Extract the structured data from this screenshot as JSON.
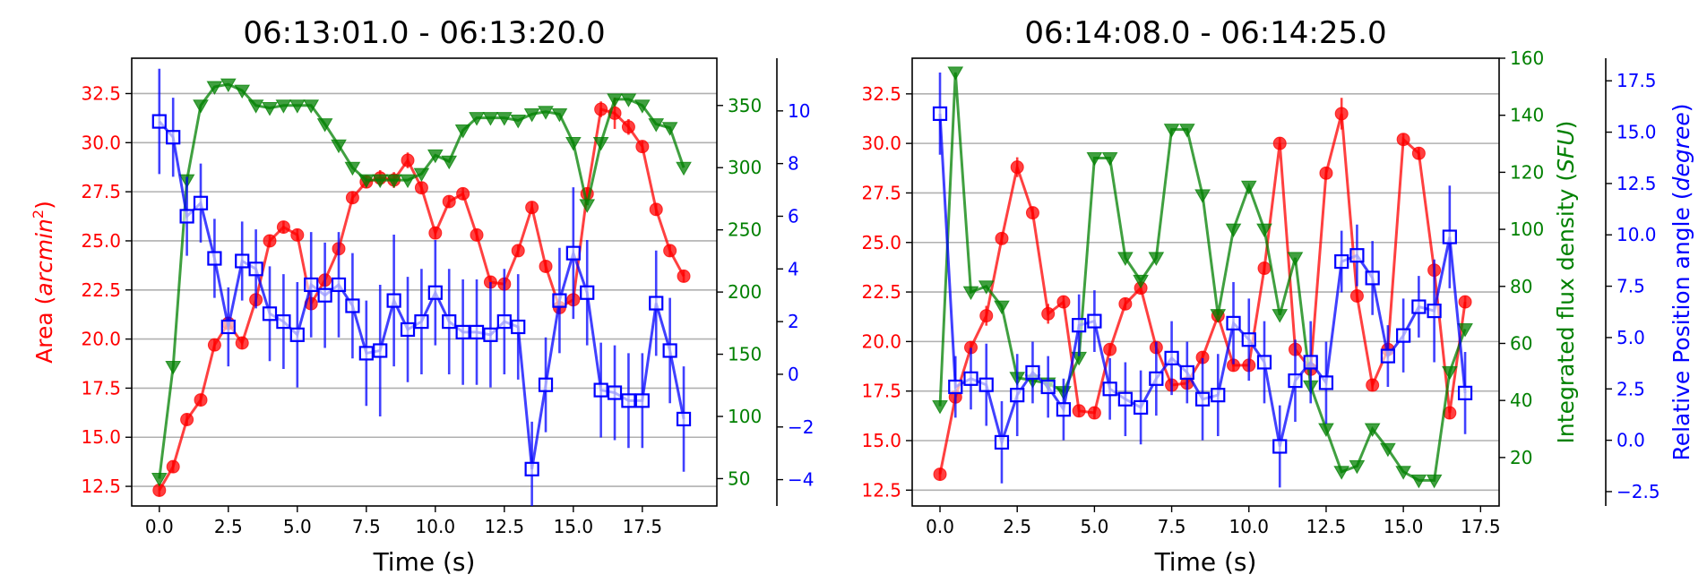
{
  "colors": {
    "area": "#ff0000",
    "flux": "#008000",
    "angle": "#0000ff",
    "grid": "#b0b0b0"
  },
  "chart_data": [
    {
      "type": "line",
      "title": "06:13:01.0 - 06:13:20.0",
      "xlabel": "Time (s)",
      "x_ticks": [
        "0.0",
        "2.5",
        "5.0",
        "7.5",
        "10.0",
        "12.5",
        "15.0",
        "17.5"
      ],
      "xlim": [
        -1.0,
        20.2
      ],
      "axes": {
        "left": {
          "ylim": [
            11.5,
            34.3
          ],
          "ticks": [
            "12.5",
            "15.0",
            "17.5",
            "20.0",
            "22.5",
            "25.0",
            "27.5",
            "30.0",
            "32.5"
          ],
          "label_text": "Area (",
          "label_var": "arcmin",
          "label_sup": "2",
          "label_end": ")"
        },
        "right1": {
          "ylim": [
            28,
            388
          ],
          "ticks": [
            "50",
            "100",
            "150",
            "200",
            "250",
            "300",
            "350"
          ]
        },
        "right2": {
          "ylim": [
            -5,
            12
          ],
          "ticks": [
            "−4",
            "−2",
            "0",
            "2",
            "4",
            "6",
            "8",
            "10"
          ]
        }
      },
      "grid": "horizontal",
      "series": [
        {
          "axis": "left",
          "marker": "circle",
          "x": [
            0,
            0.5,
            1,
            1.5,
            2,
            2.5,
            3,
            3.5,
            4,
            4.5,
            5,
            5.5,
            6,
            6.5,
            7,
            7.5,
            8,
            8.5,
            9,
            9.5,
            10,
            10.5,
            11,
            11.5,
            12,
            12.5,
            13,
            13.5,
            14,
            14.5,
            15,
            15.5,
            16,
            16.5,
            17,
            17.5,
            18,
            18.5,
            19
          ],
          "y": [
            12.3,
            13.5,
            15.9,
            16.9,
            19.7,
            20.8,
            19.8,
            22.0,
            25.0,
            25.7,
            25.3,
            21.8,
            23.0,
            24.6,
            27.2,
            28.0,
            28.2,
            28.1,
            29.1,
            27.7,
            25.4,
            27.0,
            27.4,
            25.3,
            22.9,
            22.8,
            24.5,
            26.7,
            23.7,
            21.6,
            22.0,
            27.4,
            31.7,
            31.5,
            30.8,
            29.8,
            26.6,
            24.5,
            23.2
          ],
          "err": [
            0.3,
            0.3,
            0.3,
            0.3,
            0.3,
            0.3,
            0.3,
            0.3,
            0.3,
            0.3,
            0.3,
            0.3,
            0.3,
            0.3,
            0.3,
            0.3,
            0.4,
            0.4,
            0.4,
            0.3,
            0.3,
            0.3,
            0.3,
            0.3,
            0.3,
            0.3,
            0.3,
            0.3,
            0.3,
            0.3,
            0.3,
            0.3,
            0.4,
            0.8,
            0.4,
            0.3,
            0.3,
            0.3,
            0.3
          ]
        },
        {
          "axis": "right1",
          "marker": "triangle",
          "x": [
            0,
            0.5,
            1,
            1.5,
            2,
            2.5,
            3,
            3.5,
            4,
            4.5,
            5,
            5.5,
            6,
            6.5,
            7,
            7.5,
            8,
            8.5,
            9,
            9.5,
            10,
            10.5,
            11,
            11.5,
            12,
            12.5,
            13,
            13.5,
            14,
            14.5,
            15,
            15.5,
            16,
            16.5,
            17,
            17.5,
            18,
            18.5,
            19
          ],
          "y": [
            50,
            140,
            290,
            350,
            365,
            367,
            362,
            350,
            348,
            350,
            350,
            350,
            335,
            318,
            300,
            290,
            290,
            290,
            290,
            295,
            310,
            305,
            330,
            340,
            340,
            340,
            338,
            343,
            345,
            343,
            320,
            270,
            320,
            355,
            355,
            350,
            335,
            332,
            300
          ]
        },
        {
          "axis": "right2",
          "marker": "square",
          "x": [
            0,
            0.5,
            1,
            1.5,
            2,
            2.5,
            3,
            3.5,
            4,
            4.5,
            5,
            5.5,
            6,
            6.5,
            7,
            7.5,
            8,
            8.5,
            9,
            9.5,
            10,
            10.5,
            11,
            11.5,
            12,
            12.5,
            13,
            13.5,
            14,
            14.5,
            15,
            15.5,
            16,
            16.5,
            17,
            17.5,
            18,
            18.5,
            19
          ],
          "y": [
            9.6,
            9.0,
            6.0,
            6.5,
            4.4,
            1.8,
            4.3,
            4.0,
            2.3,
            2.0,
            1.5,
            3.4,
            3.0,
            3.4,
            2.6,
            0.8,
            0.9,
            2.8,
            1.7,
            2.0,
            3.1,
            2.0,
            1.6,
            1.6,
            1.5,
            2.0,
            1.8,
            -3.6,
            -0.4,
            2.8,
            4.6,
            3.1,
            -0.6,
            -0.7,
            -1.0,
            -1.0,
            2.7,
            0.9,
            -1.7
          ],
          "err": [
            2.0,
            1.5,
            1.5,
            1.5,
            1.5,
            1.5,
            1.5,
            1.5,
            1.8,
            1.8,
            2.0,
            2.0,
            2.0,
            2.0,
            2.0,
            2.0,
            2.5,
            2.5,
            2.0,
            2.0,
            2.0,
            2.0,
            2.0,
            2.0,
            2.0,
            2.0,
            2.0,
            1.8,
            1.8,
            2.0,
            2.5,
            2.0,
            1.8,
            1.8,
            1.8,
            1.8,
            2.0,
            2.0,
            2.0
          ]
        }
      ]
    },
    {
      "type": "line",
      "title": "06:14:08.0 - 06:14:25.0",
      "xlabel": "Time (s)",
      "x_ticks": [
        "0.0",
        "2.5",
        "5.0",
        "7.5",
        "10.0",
        "12.5",
        "15.0",
        "17.5"
      ],
      "xlim": [
        -0.9,
        18.1
      ],
      "axes": {
        "left": {
          "ylim": [
            11.7,
            34.3
          ],
          "ticks": [
            "12.5",
            "15.0",
            "17.5",
            "20.0",
            "22.5",
            "25.0",
            "27.5",
            "30.0",
            "32.5"
          ]
        },
        "right1": {
          "ylim": [
            3,
            160
          ],
          "ticks": [
            "20",
            "40",
            "60",
            "80",
            "100",
            "120",
            "140",
            "160"
          ],
          "label_text": "Integrated flux density (",
          "label_var": "SFU",
          "label_end": ")"
        },
        "right2": {
          "ylim": [
            -3.2,
            18.6
          ],
          "ticks": [
            "−2.5",
            "0.0",
            "2.5",
            "5.0",
            "7.5",
            "10.0",
            "12.5",
            "15.0",
            "17.5"
          ],
          "label_text": "Relative Position angle (",
          "label_var": "degree",
          "label_end": ")"
        }
      },
      "grid": "horizontal",
      "series": [
        {
          "axis": "left",
          "marker": "circle",
          "x": [
            0,
            0.5,
            1,
            1.5,
            2,
            2.5,
            3,
            3.5,
            4,
            4.5,
            5,
            5.5,
            6,
            6.5,
            7,
            7.5,
            8,
            8.5,
            9,
            9.5,
            10,
            10.5,
            11,
            11.5,
            12,
            12.5,
            13,
            13.5,
            14,
            14.5,
            15,
            15.5,
            16,
            16.5,
            17
          ],
          "y": [
            13.3,
            17.2,
            19.7,
            21.3,
            25.2,
            28.8,
            26.5,
            21.4,
            22.0,
            16.5,
            16.4,
            19.6,
            21.9,
            22.7,
            19.7,
            17.8,
            17.9,
            19.2,
            21.3,
            18.8,
            18.8,
            23.7,
            30.0,
            19.6,
            18.6,
            28.5,
            31.5,
            22.3,
            17.8,
            19.6,
            30.2,
            29.5,
            23.6,
            16.4,
            22.0
          ],
          "err": [
            0.3,
            0.3,
            0.3,
            0.5,
            0.3,
            0.5,
            0.3,
            0.5,
            0.3,
            0.3,
            0.3,
            0.3,
            0.3,
            0.3,
            0.3,
            0.3,
            0.3,
            0.3,
            0.3,
            0.3,
            0.3,
            0.3,
            0.3,
            0.3,
            0.3,
            0.3,
            0.8,
            0.3,
            0.3,
            0.3,
            0.3,
            0.3,
            0.3,
            0.3,
            0.3
          ]
        },
        {
          "axis": "right1",
          "marker": "triangle",
          "x": [
            0,
            0.5,
            1,
            1.5,
            2,
            2.5,
            3,
            3.5,
            4,
            4.5,
            5,
            5.5,
            6,
            6.5,
            7,
            7.5,
            8,
            8.5,
            9,
            9.5,
            10,
            10.5,
            11,
            11.5,
            12,
            12.5,
            13,
            13.5,
            14,
            14.5,
            15,
            15.5,
            16,
            16.5,
            17
          ],
          "y": [
            38,
            155,
            78,
            80,
            73,
            48,
            47,
            46,
            43,
            55,
            125,
            125,
            90,
            82,
            90,
            135,
            135,
            112,
            70,
            100,
            115,
            100,
            70,
            90,
            45,
            30,
            15,
            17,
            30,
            23,
            15,
            12,
            12,
            50,
            65
          ]
        },
        {
          "axis": "right2",
          "marker": "square",
          "x": [
            0,
            0.5,
            1,
            1.5,
            2,
            2.5,
            3,
            3.5,
            4,
            4.5,
            5,
            5.5,
            6,
            6.5,
            7,
            7.5,
            8,
            8.5,
            9,
            9.5,
            10,
            10.5,
            11,
            11.5,
            12,
            12.5,
            13,
            13.5,
            14,
            14.5,
            15,
            15.5,
            16,
            16.5,
            17
          ],
          "y": [
            15.9,
            2.6,
            3.0,
            2.7,
            -0.1,
            2.2,
            3.3,
            2.6,
            1.5,
            5.6,
            5.8,
            2.5,
            2.0,
            1.6,
            3.0,
            4.0,
            3.3,
            2.0,
            2.2,
            5.7,
            4.9,
            3.8,
            -0.3,
            2.9,
            3.8,
            2.8,
            8.7,
            9.0,
            7.9,
            4.1,
            5.1,
            6.5,
            6.3,
            9.9,
            2.3
          ],
          "err": [
            2.0,
            1.5,
            1.5,
            2.0,
            2.0,
            2.0,
            1.5,
            1.5,
            1.5,
            1.5,
            1.5,
            1.5,
            1.8,
            1.8,
            1.8,
            1.8,
            1.5,
            2.0,
            2.0,
            2.0,
            2.0,
            2.0,
            2.0,
            2.0,
            2.0,
            2.0,
            1.5,
            1.5,
            1.8,
            1.5,
            1.8,
            1.5,
            2.5,
            2.5,
            2.0
          ]
        }
      ]
    }
  ]
}
